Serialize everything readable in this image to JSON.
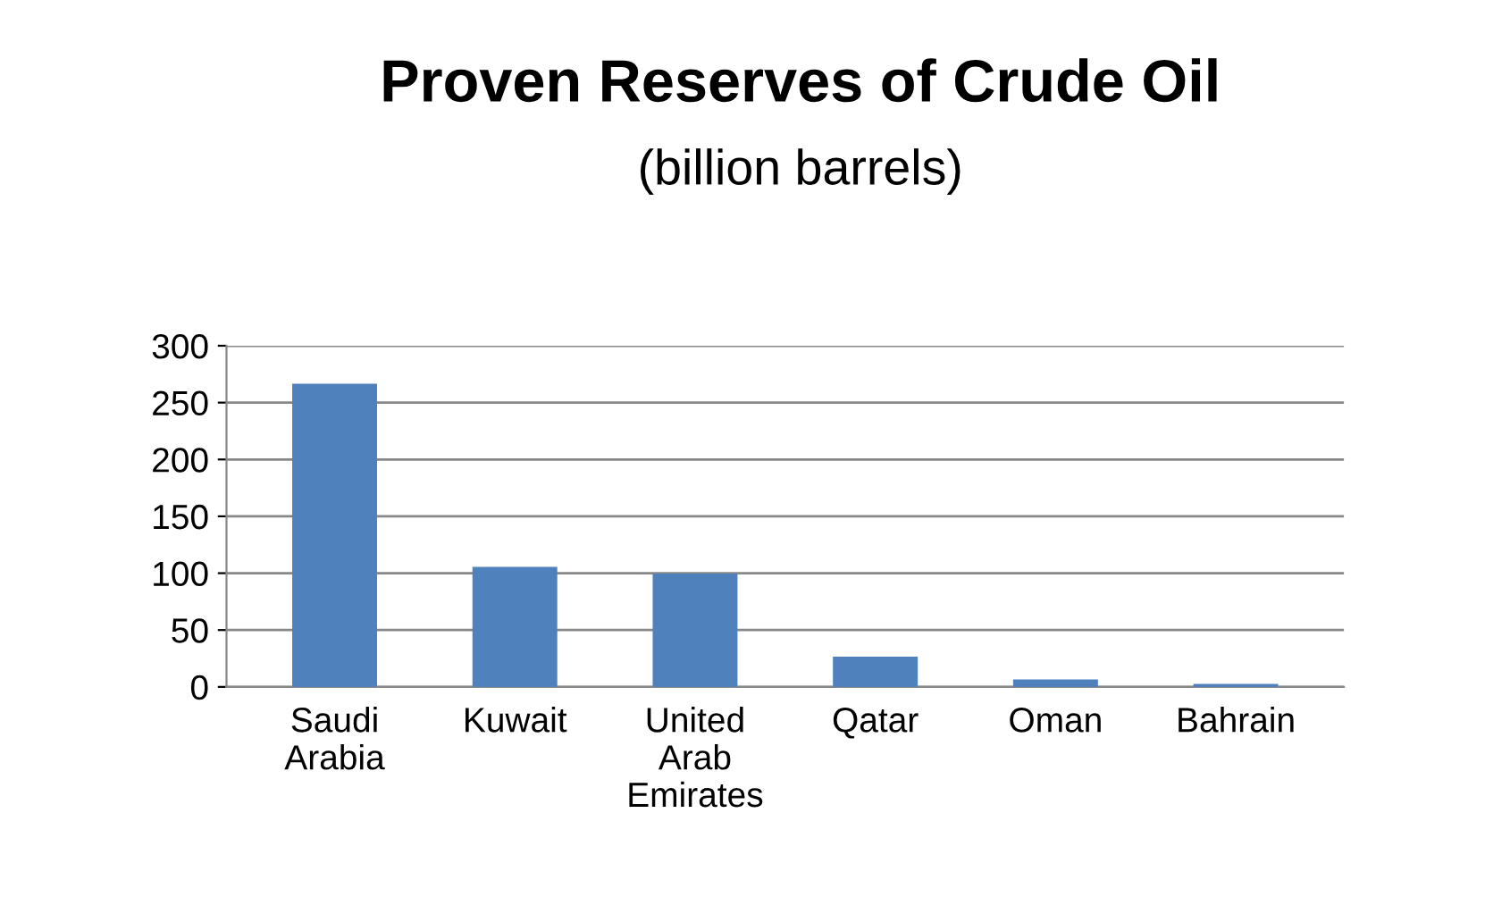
{
  "chart_data": {
    "type": "bar",
    "title": "Proven Reserves of Crude Oil",
    "subtitle": "(billion barrels)",
    "categories": [
      "Saudi\nArabia",
      "Kuwait",
      "United\nArab\nEmirates",
      "Qatar",
      "Oman",
      "Bahrain"
    ],
    "values": [
      265,
      104,
      98,
      25,
      5,
      1
    ],
    "color": "#4f81bd",
    "ylim": [
      0,
      300
    ],
    "yticks": [
      0,
      50,
      100,
      150,
      200,
      250,
      300
    ],
    "grid": "y",
    "legend": false
  }
}
